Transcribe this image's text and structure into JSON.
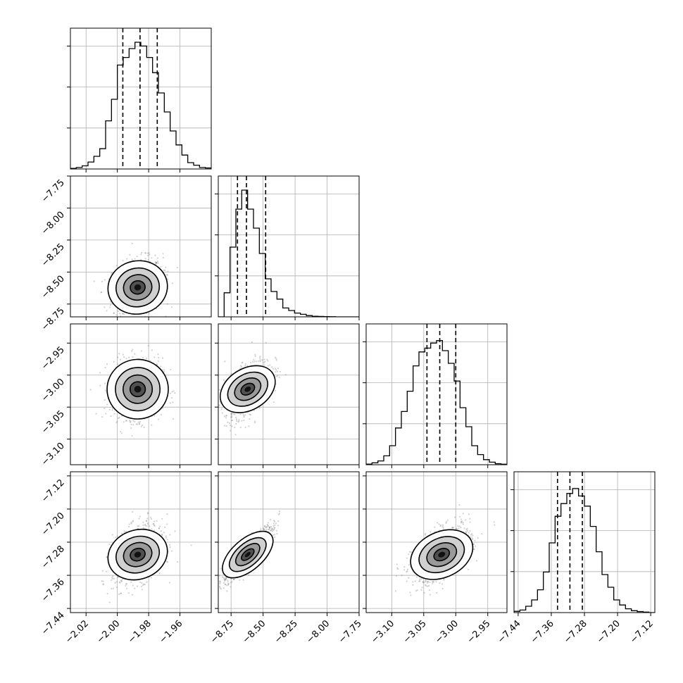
{
  "chart_data": {
    "type": "corner",
    "grid": true,
    "title": "",
    "parameters": [
      {
        "range": [
          -2.03,
          -1.94
        ],
        "ticks": [
          "-2.02",
          "-2.00",
          "-1.98",
          "-1.96"
        ],
        "tick_values": [
          -2.02,
          -2.0,
          -1.98,
          -1.96
        ],
        "quantiles": [
          -1.9965,
          -1.9855,
          -1.9745
        ],
        "hist": [
          0.005,
          0.012,
          0.025,
          0.055,
          0.1,
          0.16,
          0.38,
          0.55,
          0.82,
          0.88,
          0.95,
          1.0,
          0.97,
          0.88,
          0.76,
          0.6,
          0.45,
          0.3,
          0.19,
          0.11,
          0.05,
          0.03,
          0.012,
          0.008
        ]
      },
      {
        "range": [
          -8.85,
          -7.75
        ],
        "ticks": [
          "-8.75",
          "-8.50",
          "-8.25",
          "-8.00",
          "-7.75"
        ],
        "tick_values": [
          -8.75,
          -8.5,
          -8.25,
          -8.0,
          -7.75
        ],
        "quantiles": [
          -8.7,
          -8.63,
          -8.48
        ],
        "hist": [
          0.0,
          0.19,
          0.55,
          0.85,
          1.0,
          0.85,
          0.7,
          0.5,
          0.3,
          0.2,
          0.14,
          0.07,
          0.05,
          0.03,
          0.02,
          0.01,
          0.005,
          0.003,
          0.002,
          0.001,
          0.0,
          0.0,
          0.0,
          0.0
        ]
      },
      {
        "range": [
          -3.14,
          -2.92
        ],
        "ticks": [
          "-3.10",
          "-3.05",
          "-3.00",
          "-2.95"
        ],
        "tick_values": [
          -3.1,
          -3.05,
          -3.0,
          -2.95
        ],
        "quantiles": [
          -3.045,
          -3.025,
          -3.0
        ],
        "hist": [
          0.005,
          0.015,
          0.03,
          0.07,
          0.15,
          0.29,
          0.42,
          0.58,
          0.78,
          0.89,
          0.92,
          0.96,
          0.98,
          0.9,
          0.8,
          0.66,
          0.45,
          0.3,
          0.15,
          0.08,
          0.04,
          0.02,
          0.008,
          0.004
        ]
      },
      {
        "range": [
          -7.45,
          -7.11
        ],
        "ticks": [
          "-7.44",
          "-7.36",
          "-7.28",
          "-7.20",
          "-7.12"
        ],
        "tick_values": [
          -7.44,
          -7.36,
          -7.28,
          -7.2,
          -7.12
        ],
        "quantiles": [
          -7.345,
          -7.315,
          -7.285
        ],
        "hist": [
          0.01,
          0.02,
          0.05,
          0.1,
          0.18,
          0.32,
          0.55,
          0.76,
          0.86,
          0.94,
          0.98,
          0.92,
          0.84,
          0.68,
          0.48,
          0.3,
          0.2,
          0.1,
          0.06,
          0.03,
          0.015,
          0.008,
          0.004,
          0.0
        ]
      }
    ],
    "pairs": [
      {
        "row": 1,
        "col": 0,
        "mean": [
          -1.987,
          -8.62
        ],
        "sd": [
          0.008,
          0.11
        ],
        "rho": 0.2
      },
      {
        "row": 2,
        "col": 0,
        "mean": [
          -1.987,
          -3.022
        ],
        "sd": [
          0.008,
          0.023
        ],
        "rho": 0.05
      },
      {
        "row": 2,
        "col": 1,
        "mean": [
          -8.62,
          -3.022
        ],
        "sd": [
          0.09,
          0.023
        ],
        "rho": 0.55
      },
      {
        "row": 3,
        "col": 0,
        "mean": [
          -1.987,
          -7.31
        ],
        "sd": [
          0.008,
          0.035
        ],
        "rho": 0.35
      },
      {
        "row": 3,
        "col": 1,
        "mean": [
          -8.62,
          -7.31
        ],
        "sd": [
          0.1,
          0.035
        ],
        "rho": 0.9
      },
      {
        "row": 3,
        "col": 2,
        "mean": [
          -3.022,
          -7.31
        ],
        "sd": [
          0.023,
          0.035
        ],
        "rho": 0.55
      }
    ]
  }
}
